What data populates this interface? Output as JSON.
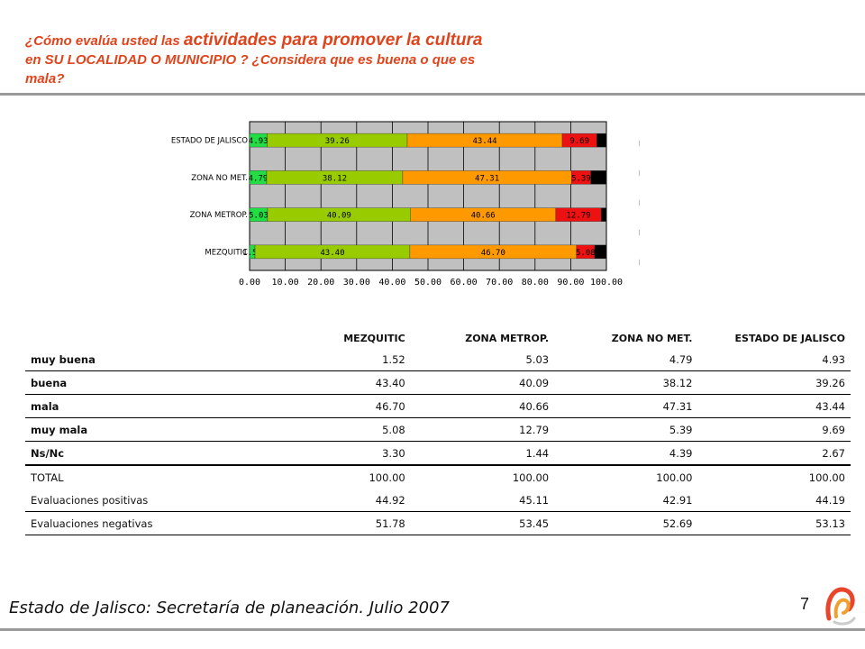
{
  "title": {
    "part1": "¿Cómo evalúa usted las ",
    "part2": "actividades para promover la cultura",
    "part3": " en SU LOCALIDAD O MUNICIPIO ? ¿Considera que es buena o que es mala?"
  },
  "chart_data": {
    "type": "bar",
    "orientation": "horizontal",
    "stacked": true,
    "categories": [
      "ESTADO DE JALISCO",
      "ZONA NO MET.",
      "ZONA METROP.",
      "MEZQUITIC"
    ],
    "series": [
      {
        "name": "muy buena",
        "color": "#22dd44",
        "values": [
          4.93,
          4.79,
          5.03,
          1.52
        ]
      },
      {
        "name": "buena",
        "color": "#99cc00",
        "values": [
          39.26,
          38.12,
          40.09,
          43.4
        ]
      },
      {
        "name": "mala",
        "color": "#ff9900",
        "values": [
          43.44,
          47.31,
          40.66,
          46.7
        ]
      },
      {
        "name": "muy mala",
        "color": "#ee1111",
        "values": [
          9.69,
          5.39,
          12.79,
          5.08
        ]
      },
      {
        "name": "Ns/Nc",
        "color": "#000000",
        "values": [
          2.67,
          4.39,
          1.44,
          3.3
        ]
      }
    ],
    "data_labels": [
      [
        "4.93",
        "39.26",
        "43.44",
        "9.69"
      ],
      [
        "4.79",
        "38.12",
        "47.31",
        "5.39"
      ],
      [
        "5.03",
        "40.09",
        "40.66",
        "12.79"
      ],
      [
        "1.52",
        "43.40",
        "46.70",
        "5.08"
      ]
    ],
    "xticks": [
      "0.00",
      "10.00",
      "20.00",
      "30.00",
      "40.00",
      "50.00",
      "60.00",
      "70.00",
      "80.00",
      "90.00",
      "100.00"
    ],
    "xlim": [
      0,
      100
    ],
    "grid": true,
    "legend_position": "right"
  },
  "table": {
    "headers": [
      "",
      "MEZQUITIC",
      "ZONA METROP.",
      "ZONA NO MET.",
      "ESTADO DE JALISCO"
    ],
    "rows": [
      {
        "label": "muy buena",
        "values": [
          "1.52",
          "5.03",
          "4.79",
          "4.93"
        ]
      },
      {
        "label": "buena",
        "values": [
          "43.40",
          "40.09",
          "38.12",
          "39.26"
        ]
      },
      {
        "label": "mala",
        "values": [
          "46.70",
          "40.66",
          "47.31",
          "43.44"
        ]
      },
      {
        "label": "muy mala",
        "values": [
          "5.08",
          "12.79",
          "5.39",
          "9.69"
        ]
      },
      {
        "label": "Ns/Nc",
        "values": [
          "3.30",
          "1.44",
          "4.39",
          "2.67"
        ]
      },
      {
        "label": "TOTAL",
        "values": [
          "100.00",
          "100.00",
          "100.00",
          "100.00"
        ]
      },
      {
        "label": "Evaluaciones positivas",
        "values": [
          "44.92",
          "45.11",
          "42.91",
          "44.19"
        ]
      },
      {
        "label": "Evaluaciones negativas",
        "values": [
          "51.78",
          "53.45",
          "52.69",
          "53.13"
        ]
      }
    ]
  },
  "footer": "Estado de Jalisco: Secretaría de planeación. Julio 2007",
  "page_number": "7",
  "logo_icon": "swirl-logo-icon",
  "colors": {
    "title": "#e0441c",
    "plot_background": "#c0c0c0"
  }
}
